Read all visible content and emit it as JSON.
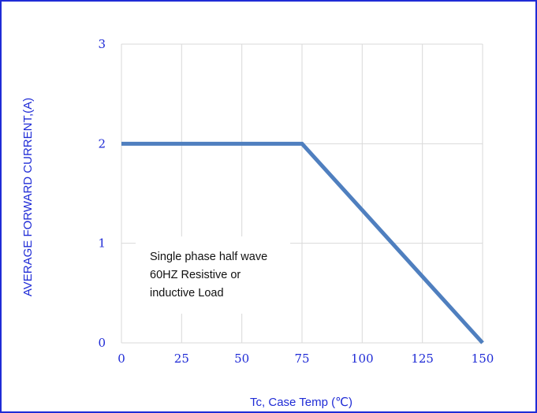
{
  "chart_data": {
    "type": "line",
    "title": "",
    "xlabel": "Tc, Case Temp (℃)",
    "ylabel": "AVERAGE FORWARD CURRENT,(A)",
    "xlim": [
      0,
      150
    ],
    "ylim": [
      0,
      3
    ],
    "x_ticks": [
      "0",
      "25",
      "50",
      "75",
      "100",
      "125",
      "150"
    ],
    "y_ticks": [
      "0",
      "1",
      "2",
      "3"
    ],
    "grid": true,
    "series": [
      {
        "x": [
          0,
          75,
          150
        ],
        "y": [
          2,
          2,
          0
        ],
        "color": "#4f7fbf"
      }
    ],
    "annotation": {
      "lines": [
        "Single phase half wave",
        "60HZ Resistive or",
        "inductive Load"
      ]
    }
  },
  "colors": {
    "frame": "#1f2bd6",
    "label": "#1f2bd6",
    "line": "#4f7fbf",
    "grid": "#d9d9d9"
  }
}
